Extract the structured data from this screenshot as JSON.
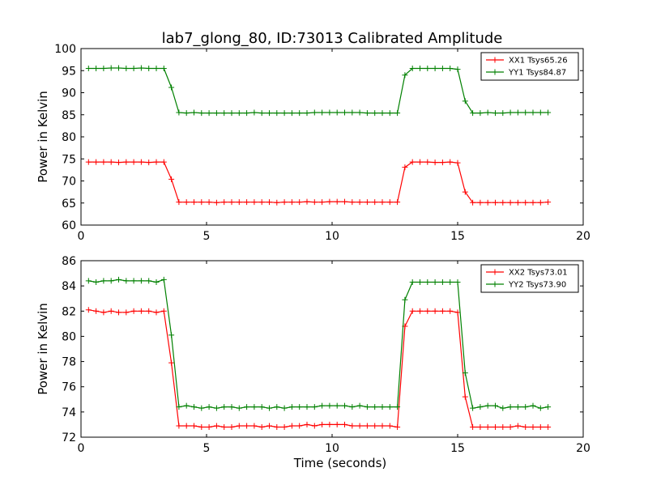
{
  "figure": {
    "title": "lab7_glong_80, ID:73013 Calibrated Amplitude"
  },
  "chart_data": [
    {
      "type": "line",
      "title": "lab7_glong_80, ID:73013 Calibrated Amplitude",
      "xlabel": "",
      "ylabel": "Power in Kelvin",
      "xlim": [
        0,
        20
      ],
      "ylim": [
        60,
        100
      ],
      "xticks": [
        "0",
        "5",
        "10",
        "15",
        "20"
      ],
      "yticks": [
        "60",
        "65",
        "70",
        "75",
        "80",
        "85",
        "90",
        "95",
        "100"
      ],
      "legend_position": "top-right",
      "x": [
        0.3,
        0.6,
        0.9,
        1.2,
        1.5,
        1.8,
        2.1,
        2.4,
        2.7,
        3.0,
        3.3,
        3.6,
        3.9,
        4.2,
        4.5,
        4.8,
        5.1,
        5.4,
        5.7,
        6.0,
        6.3,
        6.6,
        6.9,
        7.2,
        7.5,
        7.8,
        8.1,
        8.4,
        8.7,
        9.0,
        9.3,
        9.6,
        9.9,
        10.2,
        10.5,
        10.8,
        11.1,
        11.4,
        11.7,
        12.0,
        12.3,
        12.6,
        12.9,
        13.2,
        13.5,
        13.8,
        14.1,
        14.4,
        14.7,
        15.0,
        15.3,
        15.6,
        15.9,
        16.2,
        16.5,
        16.8,
        17.1,
        17.4,
        17.7,
        18.0,
        18.3,
        18.6
      ],
      "series": [
        {
          "name": "XX1 Tsys65.26",
          "color": "#ff0000",
          "values": [
            74.3,
            74.3,
            74.3,
            74.3,
            74.2,
            74.3,
            74.3,
            74.3,
            74.2,
            74.3,
            74.3,
            70.4,
            65.2,
            65.2,
            65.2,
            65.2,
            65.2,
            65.1,
            65.2,
            65.2,
            65.2,
            65.2,
            65.2,
            65.2,
            65.2,
            65.1,
            65.2,
            65.2,
            65.2,
            65.3,
            65.2,
            65.2,
            65.3,
            65.3,
            65.3,
            65.2,
            65.2,
            65.2,
            65.2,
            65.2,
            65.2,
            65.2,
            73.1,
            74.3,
            74.3,
            74.3,
            74.2,
            74.2,
            74.3,
            74.1,
            67.5,
            65.1,
            65.1,
            65.1,
            65.1,
            65.1,
            65.1,
            65.1,
            65.1,
            65.1,
            65.1,
            65.2
          ]
        },
        {
          "name": "YY1 Tsys84.87",
          "color": "#008000",
          "values": [
            95.5,
            95.5,
            95.5,
            95.6,
            95.6,
            95.5,
            95.5,
            95.6,
            95.5,
            95.5,
            95.5,
            91.2,
            85.5,
            85.4,
            85.5,
            85.4,
            85.4,
            85.4,
            85.4,
            85.4,
            85.4,
            85.4,
            85.5,
            85.4,
            85.4,
            85.4,
            85.4,
            85.4,
            85.4,
            85.4,
            85.5,
            85.5,
            85.5,
            85.5,
            85.5,
            85.5,
            85.5,
            85.4,
            85.4,
            85.4,
            85.4,
            85.4,
            94.0,
            95.5,
            95.5,
            95.5,
            95.5,
            95.5,
            95.5,
            95.3,
            88.1,
            85.4,
            85.4,
            85.5,
            85.4,
            85.4,
            85.5,
            85.5,
            85.5,
            85.5,
            85.5,
            85.5
          ]
        }
      ]
    },
    {
      "type": "line",
      "title": "",
      "xlabel": "Time (seconds)",
      "ylabel": "Power in Kelvin",
      "xlim": [
        0,
        20
      ],
      "ylim": [
        72,
        86
      ],
      "xticks": [
        "0",
        "5",
        "10",
        "15",
        "20"
      ],
      "yticks": [
        "72",
        "74",
        "76",
        "78",
        "80",
        "82",
        "84",
        "86"
      ],
      "legend_position": "top-right",
      "x": [
        0.3,
        0.6,
        0.9,
        1.2,
        1.5,
        1.8,
        2.1,
        2.4,
        2.7,
        3.0,
        3.3,
        3.6,
        3.9,
        4.2,
        4.5,
        4.8,
        5.1,
        5.4,
        5.7,
        6.0,
        6.3,
        6.6,
        6.9,
        7.2,
        7.5,
        7.8,
        8.1,
        8.4,
        8.7,
        9.0,
        9.3,
        9.6,
        9.9,
        10.2,
        10.5,
        10.8,
        11.1,
        11.4,
        11.7,
        12.0,
        12.3,
        12.6,
        12.9,
        13.2,
        13.5,
        13.8,
        14.1,
        14.4,
        14.7,
        15.0,
        15.3,
        15.6,
        15.9,
        16.2,
        16.5,
        16.8,
        17.1,
        17.4,
        17.7,
        18.0,
        18.3,
        18.6
      ],
      "series": [
        {
          "name": "XX2 Tsys73.01",
          "color": "#ff0000",
          "values": [
            82.1,
            82.0,
            81.9,
            82.0,
            81.9,
            81.9,
            82.0,
            82.0,
            82.0,
            81.9,
            82.0,
            77.9,
            72.9,
            72.9,
            72.9,
            72.8,
            72.8,
            72.9,
            72.8,
            72.8,
            72.9,
            72.9,
            72.9,
            72.8,
            72.9,
            72.8,
            72.8,
            72.9,
            72.9,
            73.0,
            72.9,
            73.0,
            73.0,
            73.0,
            73.0,
            72.9,
            72.9,
            72.9,
            72.9,
            72.9,
            72.9,
            72.8,
            80.8,
            82.0,
            82.0,
            82.0,
            82.0,
            82.0,
            82.0,
            81.9,
            75.2,
            72.8,
            72.8,
            72.8,
            72.8,
            72.8,
            72.8,
            72.9,
            72.8,
            72.8,
            72.8,
            72.8
          ]
        },
        {
          "name": "YY2 Tsys73.90",
          "color": "#008000",
          "values": [
            84.4,
            84.3,
            84.4,
            84.4,
            84.5,
            84.4,
            84.4,
            84.4,
            84.4,
            84.3,
            84.5,
            80.1,
            74.4,
            74.5,
            74.4,
            74.3,
            74.4,
            74.3,
            74.4,
            74.4,
            74.3,
            74.4,
            74.4,
            74.4,
            74.3,
            74.4,
            74.3,
            74.4,
            74.4,
            74.4,
            74.4,
            74.5,
            74.5,
            74.5,
            74.5,
            74.4,
            74.5,
            74.4,
            74.4,
            74.4,
            74.4,
            74.4,
            82.9,
            84.3,
            84.3,
            84.3,
            84.3,
            84.3,
            84.3,
            84.3,
            77.1,
            74.3,
            74.4,
            74.5,
            74.5,
            74.3,
            74.4,
            74.4,
            74.4,
            74.5,
            74.3,
            74.4
          ]
        }
      ]
    }
  ]
}
